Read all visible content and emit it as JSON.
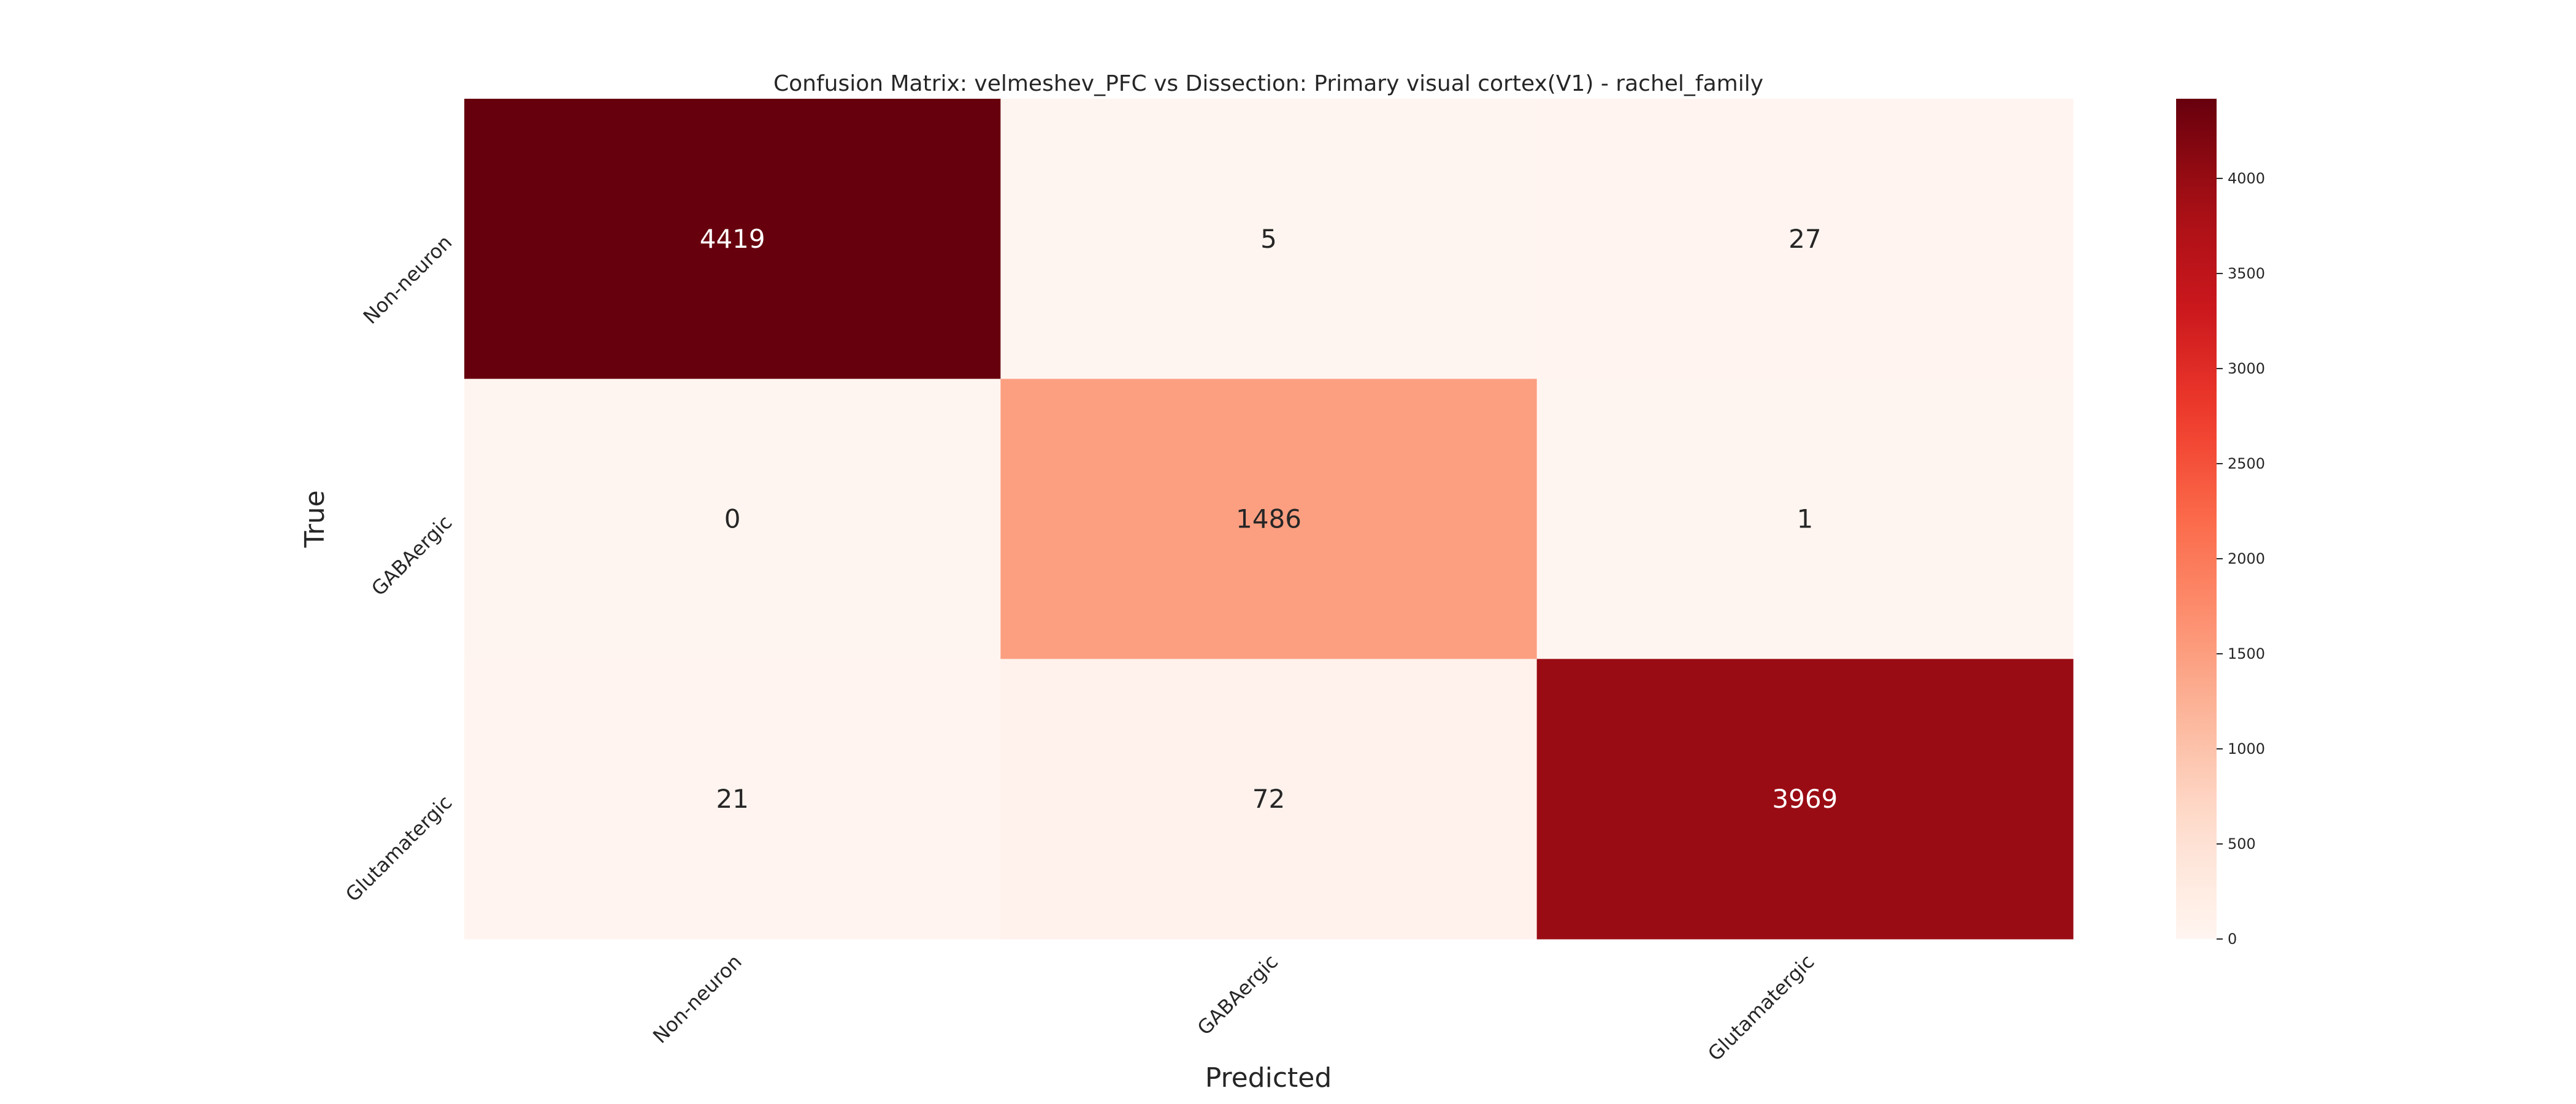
{
  "chart_data": {
    "type": "heatmap",
    "title": "Confusion Matrix: velmeshev_PFC vs Dissection: Primary visual cortex(V1) - rachel_family",
    "xlabel": "Predicted",
    "ylabel": "True",
    "x_categories": [
      "Non-neuron",
      "GABAergic",
      "Glutamatergic"
    ],
    "y_categories": [
      "Non-neuron",
      "GABAergic",
      "Glutamatergic"
    ],
    "values": [
      [
        4419,
        5,
        27
      ],
      [
        0,
        1486,
        1
      ],
      [
        21,
        72,
        3969
      ]
    ],
    "colormap": "Reds",
    "vmin": 0,
    "vmax": 4419,
    "colorbar_ticks": [
      0,
      500,
      1000,
      1500,
      2000,
      2500,
      3000,
      3500,
      4000
    ],
    "annot_dark_color": "#262626",
    "annot_light_color": "#ffffff"
  }
}
